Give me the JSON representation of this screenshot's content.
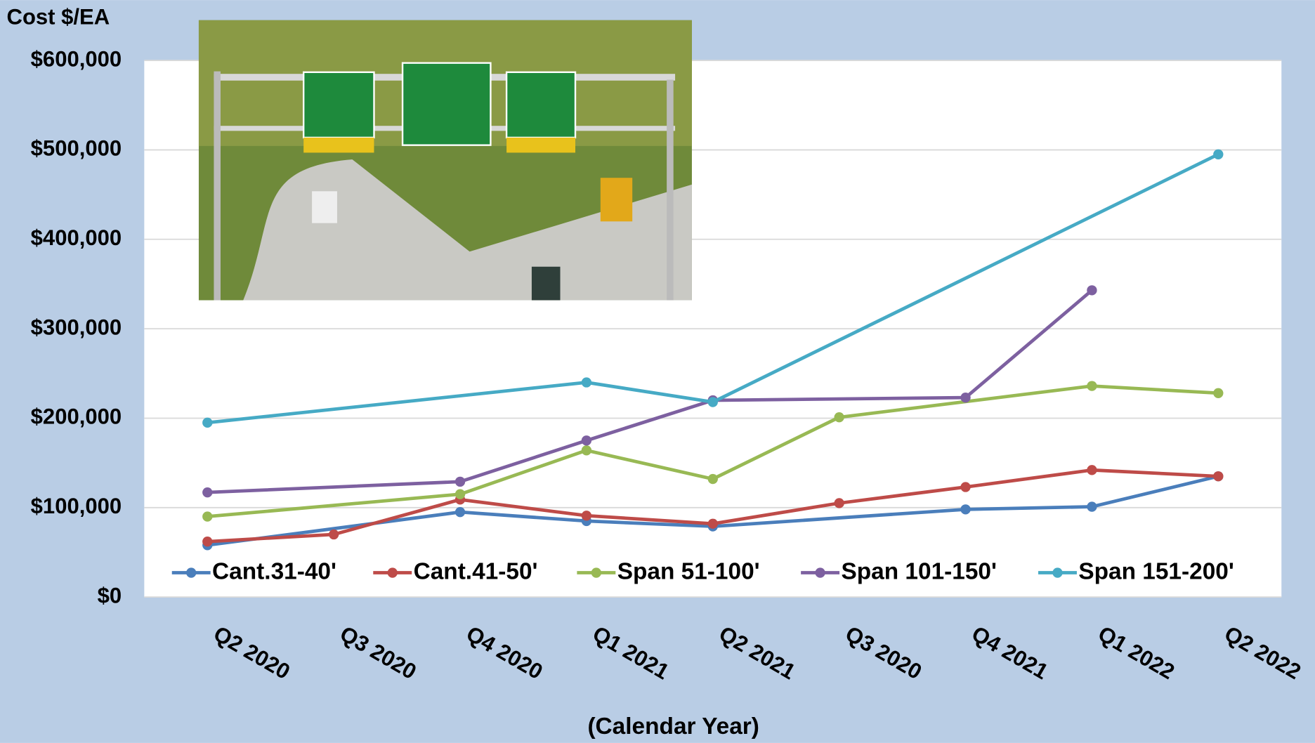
{
  "chart_data": {
    "type": "line",
    "y_axis_label": "Cost $/EA",
    "x_axis_label": "(Calendar Year)",
    "categories": [
      "Q2 2020",
      "Q3 2020",
      "Q4 2020",
      "Q1 2021",
      "Q2 2021",
      "Q3 2020",
      "Q4 2021",
      "Q1 2022",
      "Q2 2022"
    ],
    "series": [
      {
        "name": "Cant.31-40'",
        "color": "#4a7ebb",
        "values": [
          58000,
          null,
          95000,
          85000,
          79000,
          null,
          98000,
          101000,
          135000
        ]
      },
      {
        "name": "Cant.41-50'",
        "color": "#be4b48",
        "values": [
          62000,
          70000,
          109000,
          91000,
          82000,
          105000,
          123000,
          142000,
          135000
        ]
      },
      {
        "name": "Span 51-100'",
        "color": "#98b954",
        "values": [
          90000,
          null,
          115000,
          164000,
          132000,
          201000,
          null,
          236000,
          228000
        ]
      },
      {
        "name": "Span 101-150'",
        "color": "#7d60a0",
        "values": [
          117000,
          null,
          129000,
          175000,
          220000,
          null,
          223000,
          343000,
          null
        ]
      },
      {
        "name": "Span 151-200'",
        "color": "#46aac5",
        "values": [
          195000,
          null,
          null,
          240000,
          218000,
          null,
          null,
          null,
          495000
        ]
      }
    ],
    "ylim": [
      0,
      600000
    ],
    "yticks": [
      {
        "value": 0,
        "label": "$0"
      },
      {
        "value": 100000,
        "label": "$100,000"
      },
      {
        "value": 200000,
        "label": "$200,000"
      },
      {
        "value": 300000,
        "label": "$300,000"
      },
      {
        "value": 400000,
        "label": "$400,000"
      },
      {
        "value": 500000,
        "label": "$500,000"
      },
      {
        "value": 600000,
        "label": "$600,000"
      }
    ],
    "grid": true,
    "connect_gaps": true,
    "legend": "bottom"
  }
}
